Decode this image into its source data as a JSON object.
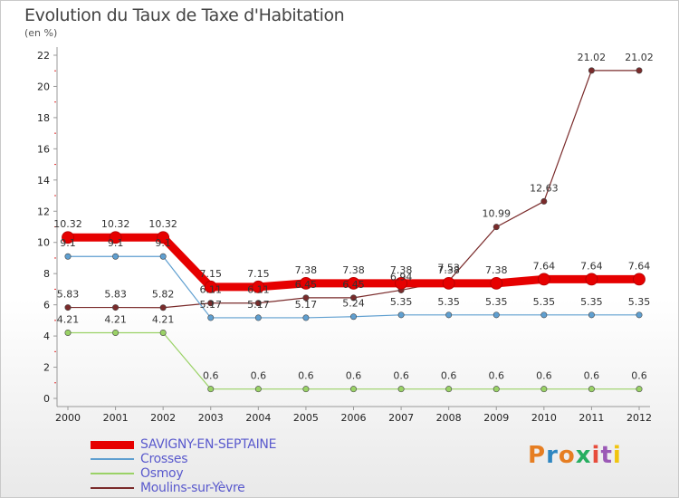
{
  "header": {
    "title": "Evolution du Taux de Taxe d'Habitation",
    "unit": "(en %)"
  },
  "brand": {
    "text": "Proxiti",
    "colors": [
      "#e67e22",
      "#2e86c1",
      "#e67e22",
      "#27ae60",
      "#e74c3c",
      "#9b59b6",
      "#f1c40f"
    ]
  },
  "chart_data": {
    "type": "line",
    "title": "Evolution du Taux de Taxe d'Habitation",
    "ylabel": "(en %)",
    "xlabel": "",
    "x": [
      "2000",
      "2001",
      "2002",
      "2003",
      "2004",
      "2005",
      "2006",
      "2007",
      "2008",
      "2009",
      "2010",
      "2011",
      "2012"
    ],
    "ylim": [
      0,
      22
    ],
    "yticks": [
      0,
      2,
      4,
      6,
      8,
      10,
      12,
      14,
      16,
      18,
      20,
      22
    ],
    "grid": false,
    "legend_position": "bottom-left",
    "series": [
      {
        "name": "SAVIGNY-EN-SEPTAINE",
        "color": "#e60000",
        "values": [
          10.32,
          10.32,
          10.32,
          7.15,
          7.15,
          7.38,
          7.38,
          7.38,
          7.38,
          7.38,
          7.64,
          7.64,
          7.64
        ],
        "labels": [
          "10.32",
          "10.32",
          "10.32",
          "7.15",
          "7.15",
          "7.38",
          "7.38",
          "7.38",
          "7.38",
          "7.38",
          "7.64",
          "7.64",
          "7.64"
        ]
      },
      {
        "name": "Crosses",
        "color": "#5f9fd0",
        "values": [
          9.1,
          9.1,
          9.1,
          5.17,
          5.17,
          5.17,
          5.24,
          5.35,
          5.35,
          5.35,
          5.35,
          5.35,
          5.35
        ],
        "labels": [
          "9.1",
          "9.1",
          "9.1",
          "5.17",
          "5.17",
          "5.17",
          "5.24",
          "5.35",
          "5.35",
          "5.35",
          "5.35",
          "5.35",
          "5.35"
        ]
      },
      {
        "name": "Osmoy",
        "color": "#9ad266",
        "values": [
          4.21,
          4.21,
          4.21,
          0.6,
          0.6,
          0.6,
          0.6,
          0.6,
          0.6,
          0.6,
          0.6,
          0.6,
          0.6
        ],
        "labels": [
          "4.21",
          "4.21",
          "4.21",
          "0.6",
          "0.6",
          "0.6",
          "0.6",
          "0.6",
          "0.6",
          "0.6",
          "0.6",
          "0.6",
          "0.6"
        ]
      },
      {
        "name": "Moulins-sur-Yèvre",
        "color": "#7a2b2b",
        "values": [
          5.83,
          5.83,
          5.82,
          6.11,
          6.11,
          6.45,
          6.45,
          6.94,
          7.53,
          10.99,
          12.63,
          21.02,
          21.02
        ],
        "labels": [
          "5.83",
          "5.83",
          "5.82",
          "6.11",
          "6.11",
          "6.45",
          "6.45",
          "6.94",
          "7.53",
          "10.99",
          "12.63",
          "21.02",
          "21.02"
        ]
      }
    ]
  }
}
